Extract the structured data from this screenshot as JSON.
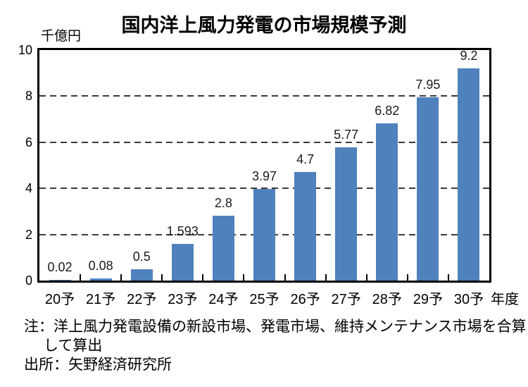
{
  "chart_data": {
    "type": "bar",
    "title": "国内洋上風力発電の市場規模予測",
    "unit_label": "千億円",
    "categories": [
      "20予",
      "21予",
      "22予",
      "23予",
      "24予",
      "25予",
      "26予",
      "27予",
      "28予",
      "29予",
      "30予"
    ],
    "values": [
      0.02,
      0.08,
      0.5,
      1.593,
      2.8,
      3.97,
      4.7,
      5.77,
      6.82,
      7.95,
      9.2
    ],
    "data_labels": [
      "0.02",
      "0.08",
      "0.5",
      "1.593",
      "2.8",
      "3.97",
      "4.7",
      "5.77",
      "6.82",
      "7.95",
      "9.2"
    ],
    "x_suffix_label": "年度",
    "xlabel": "",
    "ylabel": "千億円",
    "ylim": [
      0,
      10
    ],
    "y_ticks": [
      0,
      2,
      4,
      6,
      8,
      10
    ],
    "grid_values": [
      2,
      4,
      6,
      8
    ],
    "grid": "horizontal-dashed",
    "legend": "none",
    "bar_color": "#4f81bd",
    "axis_color": "#000000",
    "grid_color": "#3a3a3a",
    "label_color": "#1a1a1a"
  },
  "notes": {
    "note_line1": "注：洋上風力発電設備の新設市場、発電市場、維持メンテナンス市場を合算",
    "note_line2": "して算出",
    "source": "出所：矢野経済研究所"
  }
}
